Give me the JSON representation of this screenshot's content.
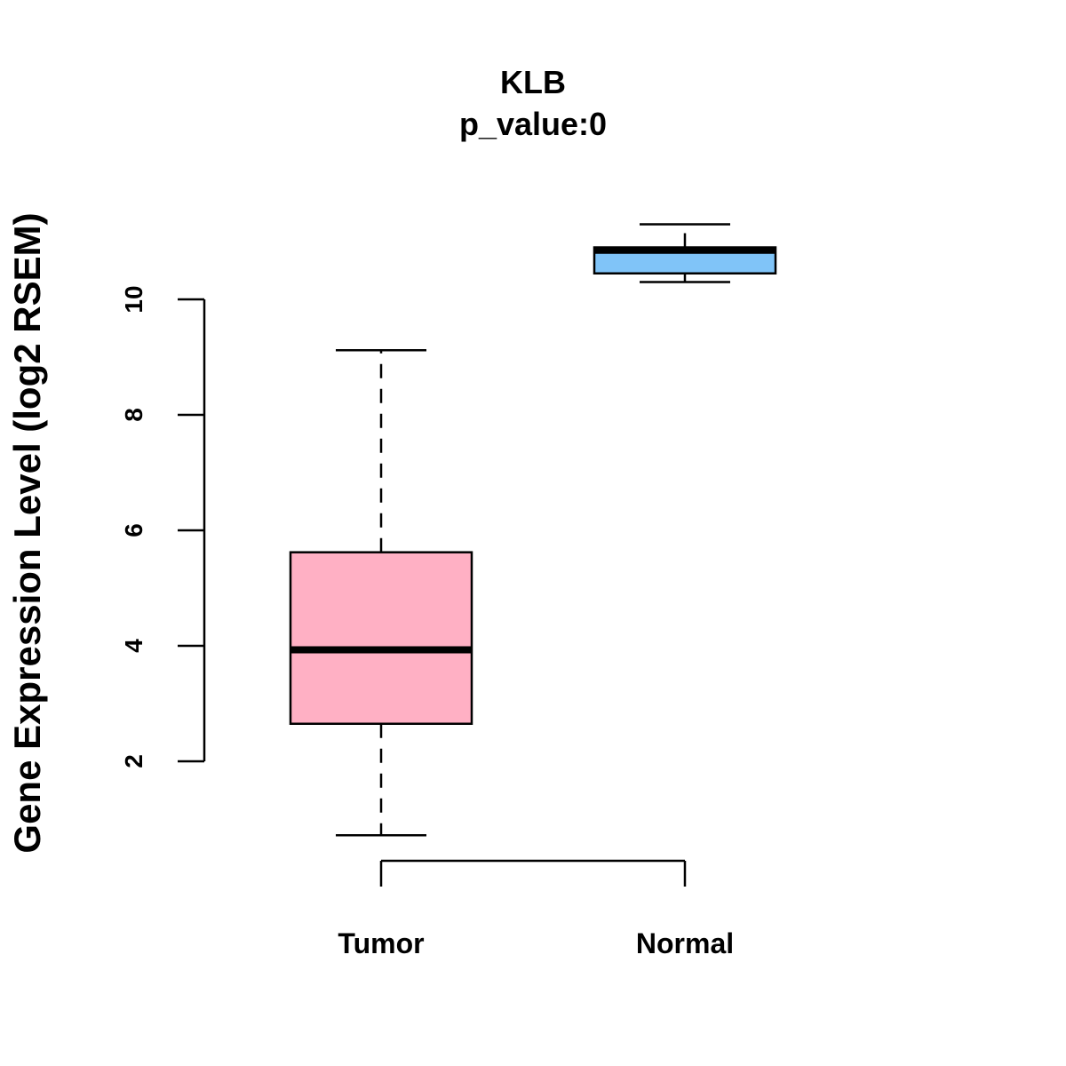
{
  "chart_data": {
    "type": "box",
    "title": "KLB",
    "subtitle": "p_value:0",
    "xlabel": "",
    "ylabel": "Gene Expression Level (log2 RSEM)",
    "ylim": [
      0.5,
      11.5
    ],
    "yticks": [
      2,
      4,
      6,
      8,
      10
    ],
    "categories": [
      "Tumor",
      "Normal"
    ],
    "boxes": [
      {
        "name": "Tumor",
        "whisker_low": 0.72,
        "q1": 2.65,
        "median": 3.93,
        "q3": 5.62,
        "whisker_high": 9.12,
        "color": "#FFB0C4"
      },
      {
        "name": "Normal",
        "whisker_low": 10.3,
        "q1": 10.45,
        "median": 10.85,
        "q3": 10.9,
        "whisker_high": 11.3,
        "color": "#80C4F8"
      }
    ],
    "grid": false,
    "legend": "none"
  }
}
